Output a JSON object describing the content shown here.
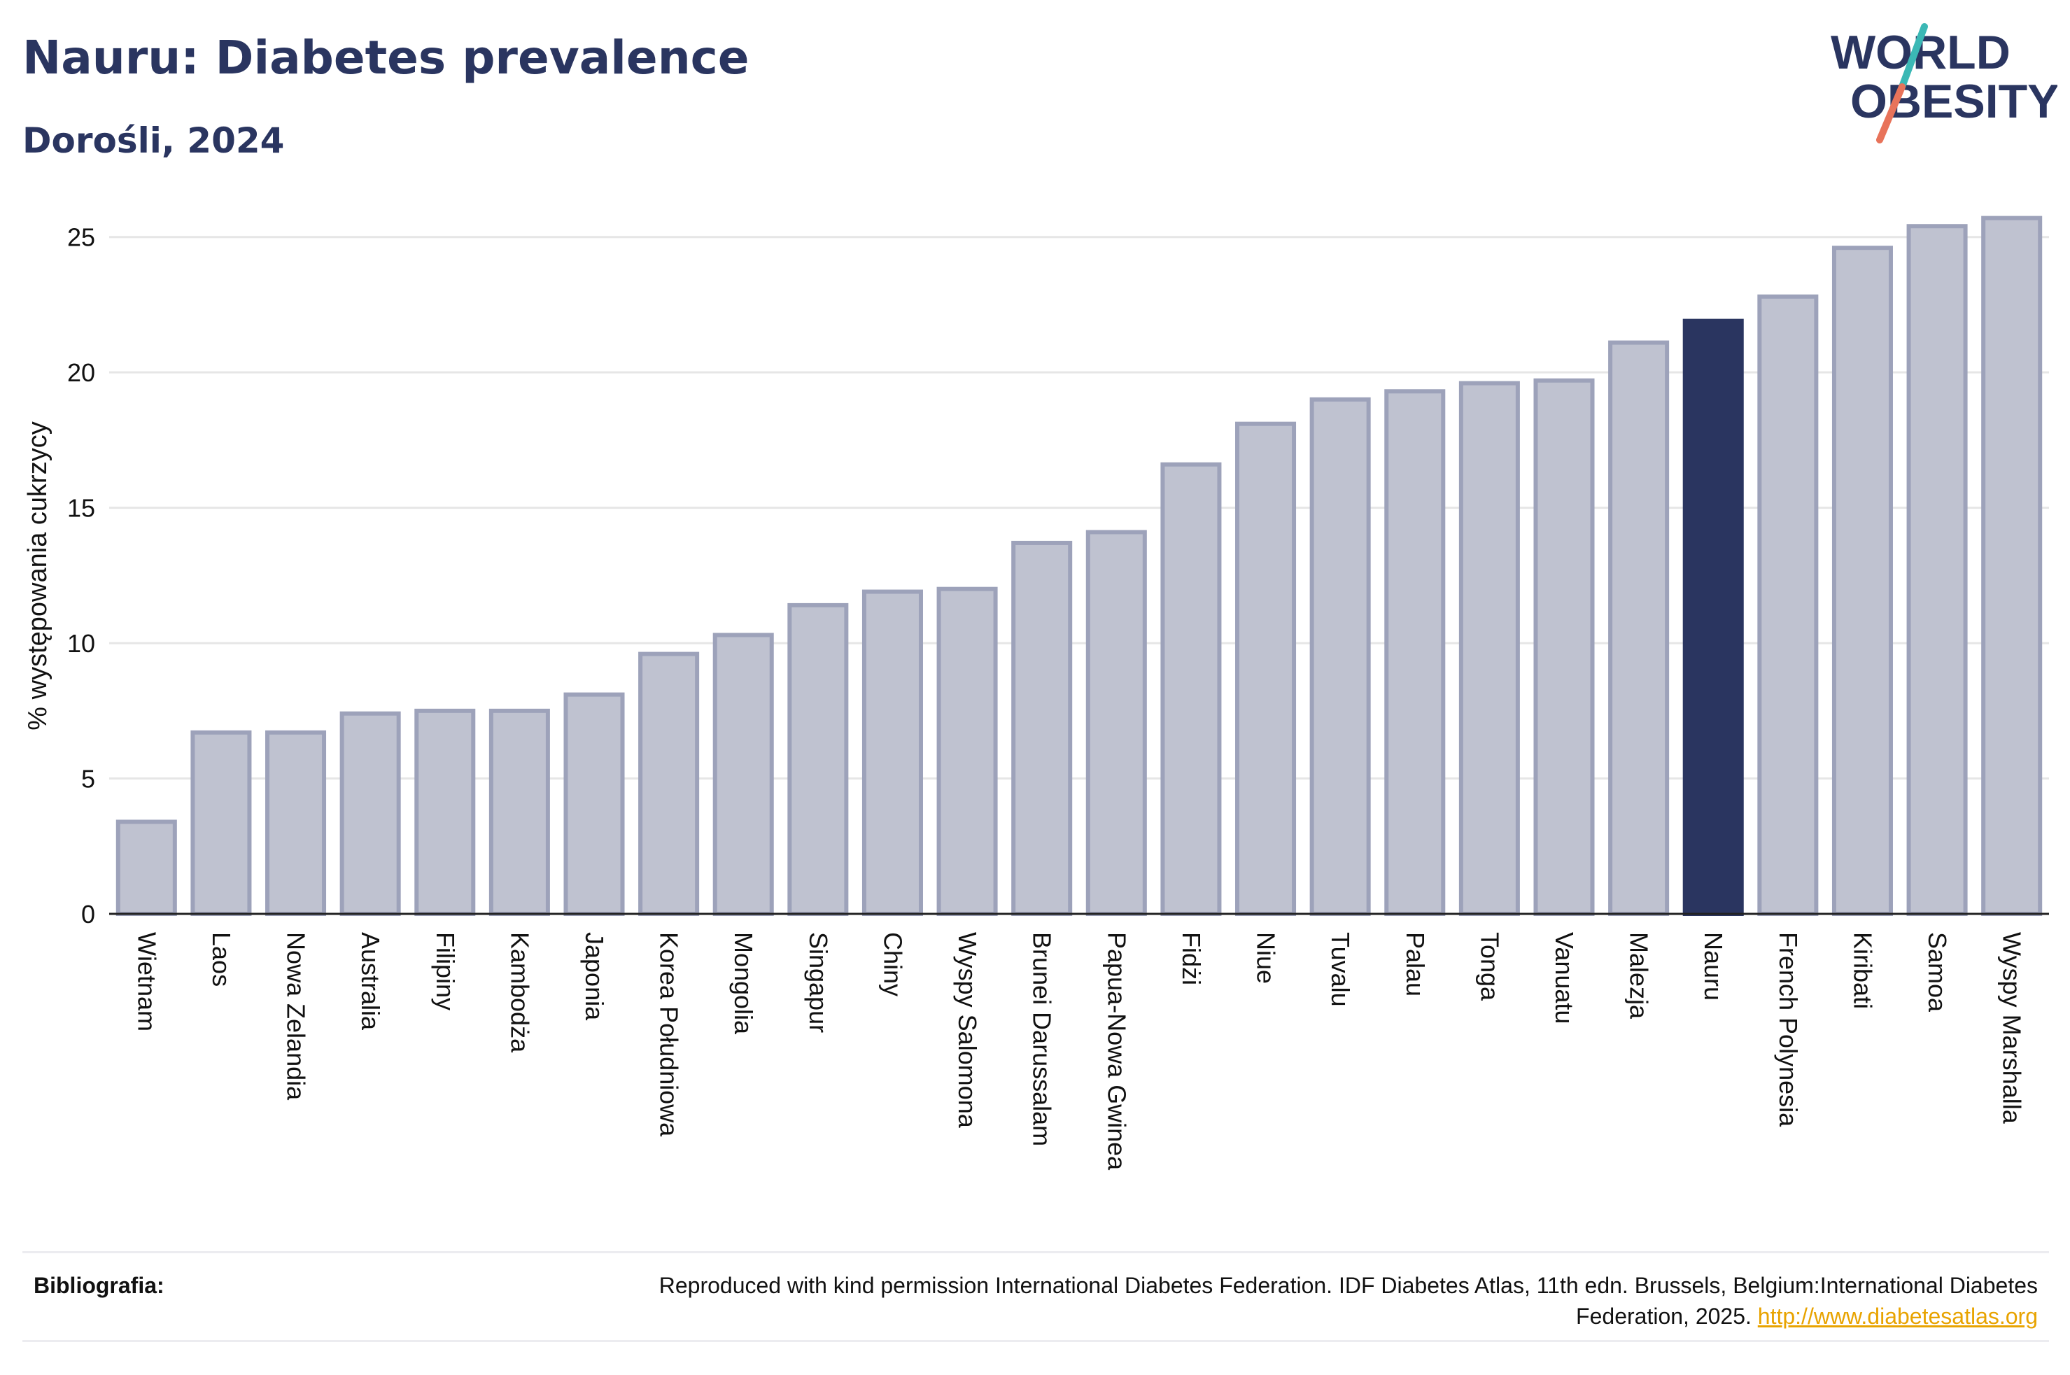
{
  "header": {
    "title": "Nauru: Diabetes prevalence",
    "subtitle": "Dorośli, 2024"
  },
  "logo": {
    "line1": "WORLD",
    "line2": "OBESITY",
    "accent_teal": "#3bb8b5",
    "accent_coral": "#e8735a",
    "text_color": "#2a3560"
  },
  "chart_data": {
    "type": "bar",
    "title": "Nauru: Diabetes prevalence",
    "subtitle": "Dorośli, 2024",
    "ylabel": "% występowania cukrzycy",
    "xlabel": "",
    "ylim": [
      0,
      26
    ],
    "yticks": [
      0,
      5,
      10,
      15,
      20,
      25
    ],
    "grid": true,
    "highlight": "Nauru",
    "colors": {
      "bar": "#bfc2d0",
      "bar_edge": "#9da2ba",
      "highlight": "#2a3560",
      "grid": "#e6e6e6"
    },
    "categories": [
      "Wietnam",
      "Laos",
      "Nowa Zelandia",
      "Australia",
      "Filipiny",
      "Kambodża",
      "Japonia",
      "Korea Południowa",
      "Mongolia",
      "Singapur",
      "Chiny",
      "Wyspy Salomona",
      "Brunei Darussalam",
      "Papua-Nowa Gwinea",
      "Fidżi",
      "Niue",
      "Tuvalu",
      "Palau",
      "Tonga",
      "Vanuatu",
      "Malezja",
      "Nauru",
      "French Polynesia",
      "Kiribati",
      "Samoa",
      "Wyspy Marshalla"
    ],
    "values": [
      3.4,
      6.7,
      6.7,
      7.4,
      7.5,
      7.5,
      8.1,
      9.6,
      10.3,
      11.4,
      11.9,
      12.0,
      13.7,
      14.1,
      16.6,
      18.1,
      19.0,
      19.3,
      19.6,
      19.7,
      21.1,
      21.9,
      22.8,
      24.6,
      25.4,
      25.7
    ]
  },
  "footer": {
    "label": "Bibliografia:",
    "text": "Reproduced with kind permission International Diabetes Federation. IDF Diabetes Atlas, 11th edn. Brussels, Belgium:International Diabetes Federation, 2025.",
    "link": "http://www.diabetesatlas.org"
  }
}
